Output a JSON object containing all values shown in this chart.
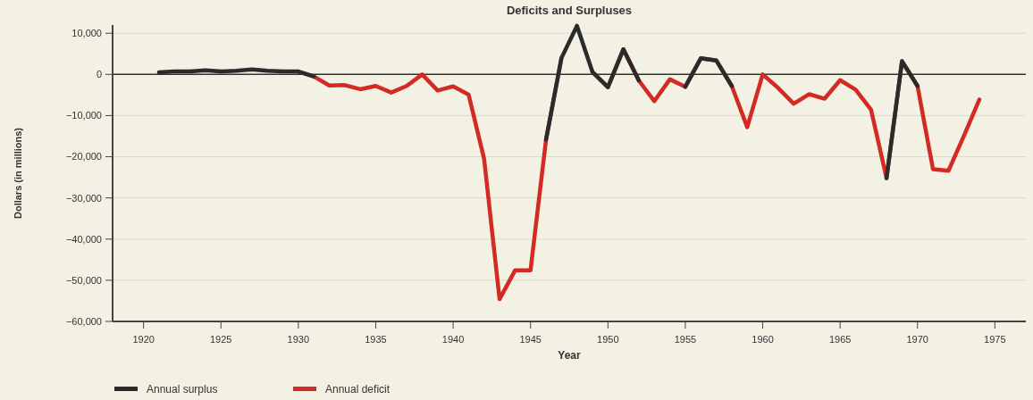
{
  "chart_data": {
    "type": "line",
    "title": "Deficits and Surpluses",
    "xlabel": "Year",
    "ylabel": "Dollars (in millions)",
    "xlim": [
      1918,
      1977
    ],
    "xticks": [
      1920,
      1925,
      1930,
      1935,
      1940,
      1945,
      1950,
      1955,
      1960,
      1965,
      1970,
      1975
    ],
    "ylim": [
      -60000,
      12000
    ],
    "yticks": [
      {
        "value": 10000,
        "label": "10,000"
      },
      0,
      {
        "value": -10000,
        "label": "−10,000"
      },
      {
        "value": -20000,
        "label": "−20,000"
      },
      {
        "value": -30000,
        "label": "−30,000"
      },
      {
        "value": -40000,
        "label": "−40,000"
      },
      {
        "value": -50000,
        "label": "−50,000"
      },
      {
        "value": -60000,
        "label": "−60,000"
      }
    ],
    "grid": "y",
    "legend": "bottom left",
    "line_style": "solid",
    "ref_lines": [
      {
        "axis": "y",
        "value": 0,
        "color": "#333333"
      }
    ],
    "x": [
      1921,
      1922,
      1923,
      1924,
      1925,
      1926,
      1927,
      1928,
      1929,
      1930,
      1931,
      1932,
      1933,
      1934,
      1935,
      1936,
      1937,
      1938,
      1939,
      1940,
      1941,
      1942,
      1943,
      1944,
      1945,
      1946,
      1947,
      1948,
      1949,
      1950,
      1951,
      1952,
      1953,
      1954,
      1955,
      1956,
      1957,
      1958,
      1959,
      1960,
      1961,
      1962,
      1963,
      1964,
      1965,
      1966,
      1967,
      1968,
      1969,
      1970,
      1971,
      1972,
      1973,
      1974
    ],
    "series": [
      {
        "name": "Annual deficit",
        "color": "#d42a24",
        "values": [
          null,
          null,
          null,
          null,
          null,
          null,
          null,
          null,
          null,
          700,
          -500,
          -2700,
          -2600,
          -3600,
          -2800,
          -4400,
          -2800,
          0,
          -3900,
          -2900,
          -4900,
          -20500,
          -54600,
          -47600,
          -47600,
          -15900,
          4000,
          null,
          600,
          -3100,
          6100,
          -1500,
          -6500,
          -1200,
          -3000,
          3900,
          3400,
          -2800,
          -12800,
          0,
          -3300,
          -7100,
          -4800,
          -5900,
          -1400,
          -3700,
          -8600,
          -25200,
          3200,
          -2800,
          -23000,
          -23400,
          -14900,
          -6100
        ]
      },
      {
        "name": "Annual surplus",
        "color": "#2b2b2b",
        "values": [
          500,
          700,
          700,
          1000,
          700,
          900,
          1200,
          900,
          700,
          700,
          -500,
          null,
          null,
          null,
          null,
          null,
          null,
          null,
          null,
          null,
          null,
          null,
          null,
          null,
          null,
          -15900,
          4000,
          11800,
          600,
          -3100,
          6100,
          -1500,
          null,
          null,
          -3000,
          3900,
          3400,
          -2800,
          null,
          null,
          null,
          null,
          null,
          null,
          null,
          null,
          null,
          -25200,
          3200,
          -2800,
          null,
          null,
          null,
          null
        ]
      }
    ]
  }
}
